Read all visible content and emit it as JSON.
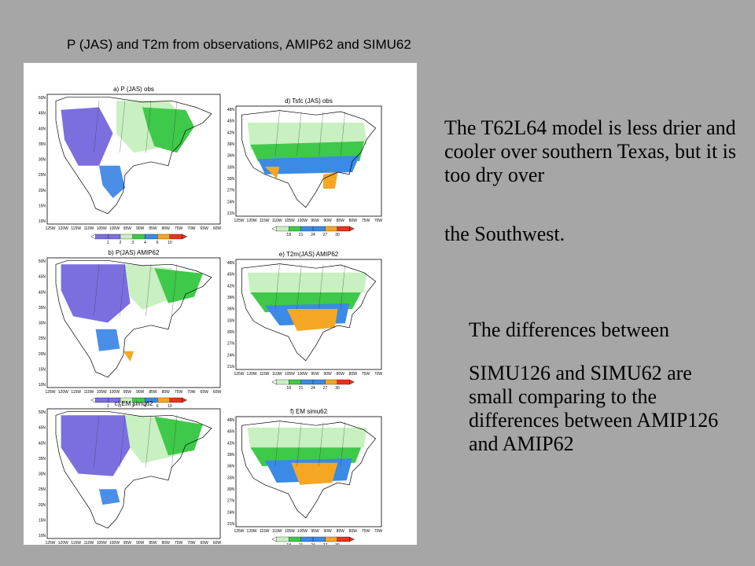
{
  "slide": {
    "title": "P (JAS) and T2m from observations, AMIP62 and SIMU62",
    "paragraphs": [
      "The T62L64 model is less drier and cooler over southern Texas, but it is too dry over",
      "the Southwest.",
      "The differences between",
      "SIMU126 and SIMU62 are small comparing to the differences between AMIP126 and AMIP62"
    ]
  },
  "figure": {
    "panels": [
      {
        "id": "a",
        "title": "a) P (JAS) obs"
      },
      {
        "id": "d",
        "title": "d) Tsfc (JAS) obs"
      },
      {
        "id": "b",
        "title": "b) P(JAS) AMIP62"
      },
      {
        "id": "e",
        "title": "e) T2m(JAS) AMIP62"
      },
      {
        "id": "c",
        "title": "c) EM simu62"
      },
      {
        "id": "f",
        "title": "f) EM simu62"
      }
    ],
    "precip_colorbar": [
      "1",
      "2",
      "3",
      "4",
      "6",
      "10"
    ],
    "temp_colorbar": [
      "18",
      "21",
      "24",
      "27",
      "30"
    ],
    "precip_lat_ticks": [
      "50N",
      "45N",
      "40N",
      "35N",
      "30N",
      "25N",
      "20N",
      "15N",
      "10N"
    ],
    "precip_lon_ticks": [
      "125W",
      "120W",
      "115W",
      "110W",
      "105W",
      "100W",
      "95W",
      "90W",
      "85W",
      "80W",
      "75W",
      "70W",
      "65W",
      "60W"
    ],
    "temp_lat_ticks": [
      "48N",
      "45N",
      "42N",
      "39N",
      "36N",
      "33N",
      "30N",
      "27N",
      "24N",
      "21N"
    ],
    "temp_lon_ticks": [
      "125W",
      "120W",
      "115W",
      "110W",
      "105W",
      "100W",
      "95W",
      "90W",
      "85W",
      "80W",
      "75W",
      "70W"
    ],
    "colors": {
      "slide_background": "#a6a6a6",
      "very_dry": "#7b6fe0",
      "dry_blue": "#4a8ee8",
      "light_green": "#c8f0c0",
      "green": "#3fc94a",
      "blue": "#3a8ae6",
      "orange": "#f5a623",
      "red": "#e8331c"
    }
  }
}
